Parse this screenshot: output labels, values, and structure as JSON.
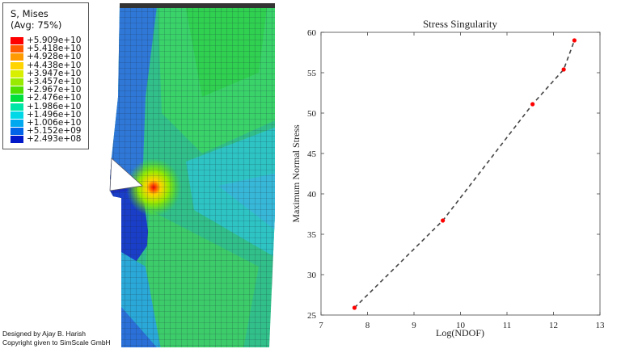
{
  "legend": {
    "title_line1": "S, Mises",
    "title_line2": "(Avg: 75%)",
    "entries": [
      {
        "label": "+5.909e+10",
        "color": "#ff0000"
      },
      {
        "label": "+5.418e+10",
        "color": "#ff5a00"
      },
      {
        "label": "+4.928e+10",
        "color": "#ff9a00"
      },
      {
        "label": "+4.438e+10",
        "color": "#ffd400"
      },
      {
        "label": "+3.947e+10",
        "color": "#d8f000"
      },
      {
        "label": "+3.457e+10",
        "color": "#98ea00"
      },
      {
        "label": "+2.967e+10",
        "color": "#4fe000"
      },
      {
        "label": "+2.476e+10",
        "color": "#00e03c"
      },
      {
        "label": "+1.986e+10",
        "color": "#00e6a6"
      },
      {
        "label": "+1.496e+10",
        "color": "#00d8e8"
      },
      {
        "label": "+1.006e+10",
        "color": "#00a8f0"
      },
      {
        "label": "+5.152e+09",
        "color": "#0064e8"
      },
      {
        "label": "+2.493e+08",
        "color": "#0018c8"
      }
    ]
  },
  "credit": {
    "line1": "Designed by Ajay B. Harish",
    "line2": "Copyright given to SimScale GmbH"
  },
  "chart_data": {
    "type": "line",
    "title": "Stress Singularity",
    "xlabel": "Log(NDOF)",
    "ylabel": "Maximum Normal Stress",
    "xlim": [
      7,
      13
    ],
    "ylim": [
      25,
      60
    ],
    "xticks": [
      7,
      8,
      9,
      10,
      11,
      12,
      13
    ],
    "yticks": [
      25,
      30,
      35,
      40,
      45,
      50,
      55,
      60
    ],
    "series": [
      {
        "name": "Maximum Normal Stress",
        "line_color": "#444444",
        "line_style": "dashed",
        "marker_color": "#ff0000",
        "x": [
          7.72,
          9.62,
          11.55,
          12.22,
          12.45
        ],
        "y": [
          25.9,
          36.7,
          51.1,
          55.4,
          59.0
        ]
      }
    ]
  }
}
